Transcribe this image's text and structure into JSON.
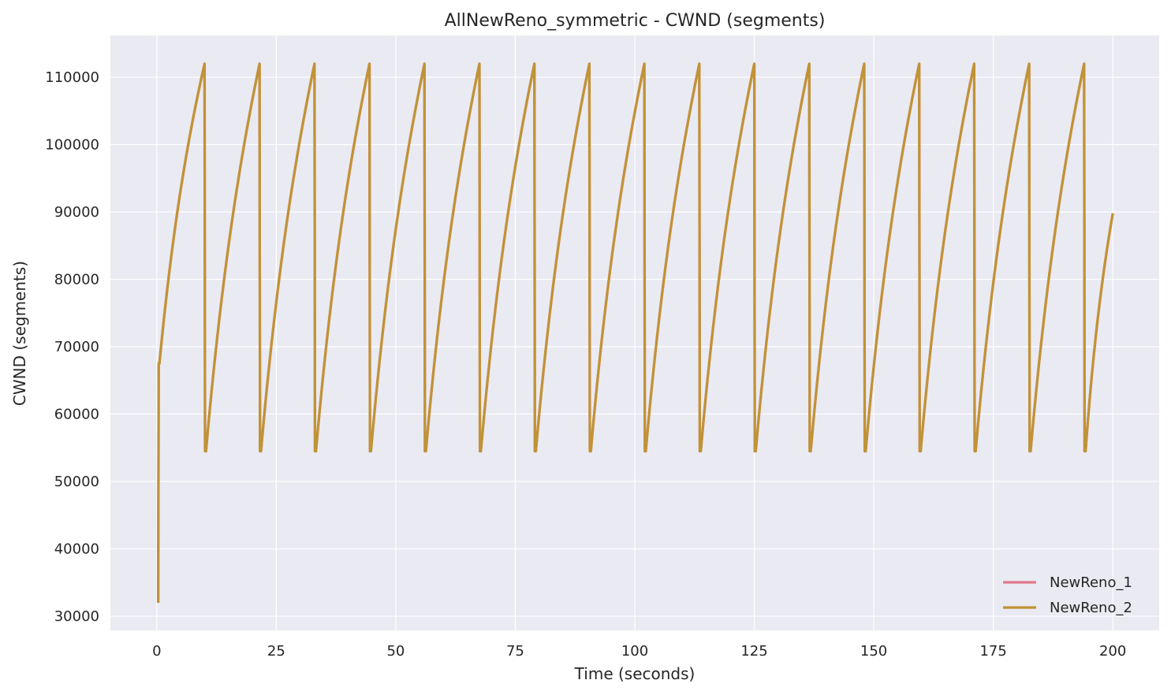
{
  "chart_data": {
    "type": "line",
    "title": "AllNewReno_symmetric - CWND (segments)",
    "xlabel": "Time (seconds)",
    "ylabel": "CWND (segments)",
    "xlim": [
      -9.7,
      209.7
    ],
    "ylim": [
      27900,
      116200
    ],
    "xticks": [
      0,
      25,
      50,
      75,
      100,
      125,
      150,
      175,
      200
    ],
    "xtick_labels": [
      "0",
      "25",
      "50",
      "75",
      "100",
      "125",
      "150",
      "175",
      "200"
    ],
    "yticks": [
      30000,
      40000,
      50000,
      60000,
      70000,
      80000,
      90000,
      100000,
      110000
    ],
    "ytick_labels": [
      "30000",
      "40000",
      "50000",
      "60000",
      "70000",
      "80000",
      "90000",
      "100000",
      "110000"
    ],
    "grid": true,
    "legend_position": "lower right",
    "initial": {
      "x": [
        0.3,
        0.4,
        0.55
      ],
      "y": [
        32000,
        67500,
        67500
      ]
    },
    "cycle": {
      "drops_at": [
        10,
        21.5,
        33,
        44.5,
        56,
        67.5,
        79,
        90.5,
        102,
        113.5,
        125,
        136.5,
        148,
        159.5,
        171,
        182.5,
        194
      ],
      "peak": 112000,
      "trough": 54500,
      "end": {
        "x": 200,
        "y": 89800
      }
    },
    "series": [
      {
        "name": "NewReno_1",
        "color": "#e0788c"
      },
      {
        "name": "NewReno_2",
        "color": "#c09336"
      }
    ]
  },
  "colors": {
    "plot_background": "#eaeaf2",
    "grid": "#ffffff",
    "text": "#262626"
  }
}
